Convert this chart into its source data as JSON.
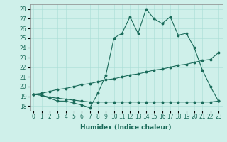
{
  "title": "",
  "xlabel": "Humidex (Indice chaleur)",
  "ylabel": "",
  "bg_color": "#cff0ea",
  "line_color": "#1a6b5a",
  "grid_color": "#a8ddd6",
  "xlim": [
    -0.5,
    23.5
  ],
  "ylim": [
    17.5,
    28.5
  ],
  "yticks": [
    18,
    19,
    20,
    21,
    22,
    23,
    24,
    25,
    26,
    27,
    28
  ],
  "xticks": [
    0,
    1,
    2,
    3,
    4,
    5,
    6,
    7,
    8,
    9,
    10,
    11,
    12,
    13,
    14,
    15,
    16,
    17,
    18,
    19,
    20,
    21,
    22,
    23
  ],
  "series1": {
    "x": [
      0,
      1,
      2,
      3,
      4,
      5,
      6,
      7,
      8,
      9,
      10,
      11,
      12,
      13,
      14,
      15,
      16,
      17,
      18,
      19,
      20,
      21,
      22,
      23
    ],
    "y": [
      19.2,
      19.1,
      18.8,
      18.5,
      18.5,
      18.3,
      18.1,
      17.8,
      19.3,
      21.2,
      25.0,
      25.5,
      27.2,
      25.5,
      28.0,
      27.0,
      26.5,
      27.2,
      25.3,
      25.5,
      24.0,
      21.7,
      20.0,
      18.5
    ]
  },
  "series2": {
    "x": [
      0,
      1,
      2,
      3,
      4,
      5,
      6,
      7,
      8,
      9,
      10,
      11,
      12,
      13,
      14,
      15,
      16,
      17,
      18,
      19,
      20,
      21,
      22,
      23
    ],
    "y": [
      19.2,
      19.3,
      19.5,
      19.7,
      19.8,
      20.0,
      20.2,
      20.3,
      20.5,
      20.7,
      20.8,
      21.0,
      21.2,
      21.3,
      21.5,
      21.7,
      21.8,
      22.0,
      22.2,
      22.3,
      22.5,
      22.7,
      22.8,
      23.5
    ]
  },
  "series3": {
    "x": [
      0,
      1,
      2,
      3,
      4,
      5,
      6,
      7,
      8,
      9,
      10,
      11,
      12,
      13,
      14,
      15,
      16,
      17,
      18,
      19,
      20,
      21,
      22,
      23
    ],
    "y": [
      19.2,
      19.1,
      18.9,
      18.8,
      18.7,
      18.6,
      18.5,
      18.4,
      18.4,
      18.4,
      18.4,
      18.4,
      18.4,
      18.4,
      18.4,
      18.4,
      18.4,
      18.4,
      18.4,
      18.4,
      18.4,
      18.4,
      18.4,
      18.5
    ]
  },
  "tick_fontsize": 5.5,
  "label_fontsize": 6.5
}
